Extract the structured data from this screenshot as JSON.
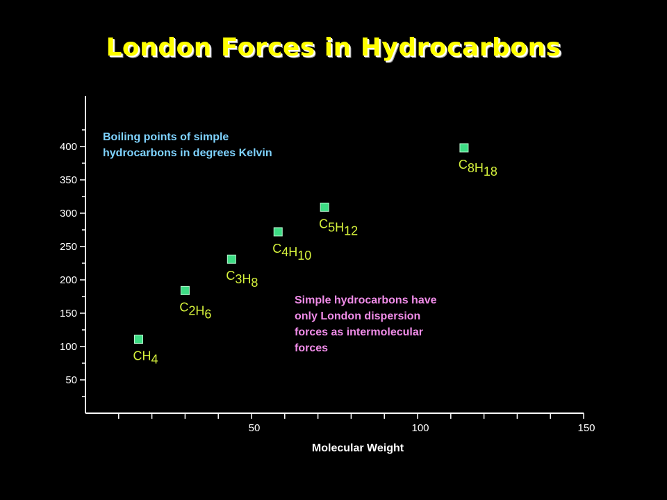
{
  "slide": {
    "title": "London Forces in Hydrocarbons"
  },
  "chart_data": {
    "type": "scatter",
    "title": "",
    "xlabel": "Molecular Weight",
    "ylabel": "",
    "xlim": [
      0,
      150
    ],
    "ylim": [
      0,
      450
    ],
    "x_ticks": [
      50,
      100,
      150
    ],
    "y_ticks": [
      50,
      100,
      150,
      200,
      250,
      300,
      350,
      400
    ],
    "grid": false,
    "points": [
      {
        "label": "CH4",
        "formula": [
          [
            "C",
            ""
          ],
          [
            "H",
            "4"
          ]
        ],
        "x": 16,
        "y": 111
      },
      {
        "label": "C2H6",
        "formula": [
          [
            "C",
            "2"
          ],
          [
            "H",
            "6"
          ]
        ],
        "x": 30,
        "y": 184
      },
      {
        "label": "C3H8",
        "formula": [
          [
            "C",
            "3"
          ],
          [
            "H",
            "8"
          ]
        ],
        "x": 44,
        "y": 231
      },
      {
        "label": "C4H10",
        "formula": [
          [
            "C",
            "4"
          ],
          [
            "H",
            "10"
          ]
        ],
        "x": 58,
        "y": 272
      },
      {
        "label": "C5H12",
        "formula": [
          [
            "C",
            "5"
          ],
          [
            "H",
            "12"
          ]
        ],
        "x": 72,
        "y": 309
      },
      {
        "label": "C8H18",
        "formula": [
          [
            "C",
            "8"
          ],
          [
            "H",
            "18"
          ]
        ],
        "x": 114,
        "y": 398
      }
    ],
    "annotations": [
      {
        "lines": [
          "Boiling points of simple",
          "hydrocarbons in degrees Kelvin"
        ],
        "color": "#7fd3ff"
      },
      {
        "lines": [
          "Simple hydrocarbons have",
          "only London dispersion",
          "forces as intermolecular",
          "forces"
        ],
        "color": "#f08ce8"
      }
    ],
    "colors": {
      "marker": "#3ddc84",
      "point_label": "#d6f23c",
      "axis": "#ffffff"
    }
  }
}
